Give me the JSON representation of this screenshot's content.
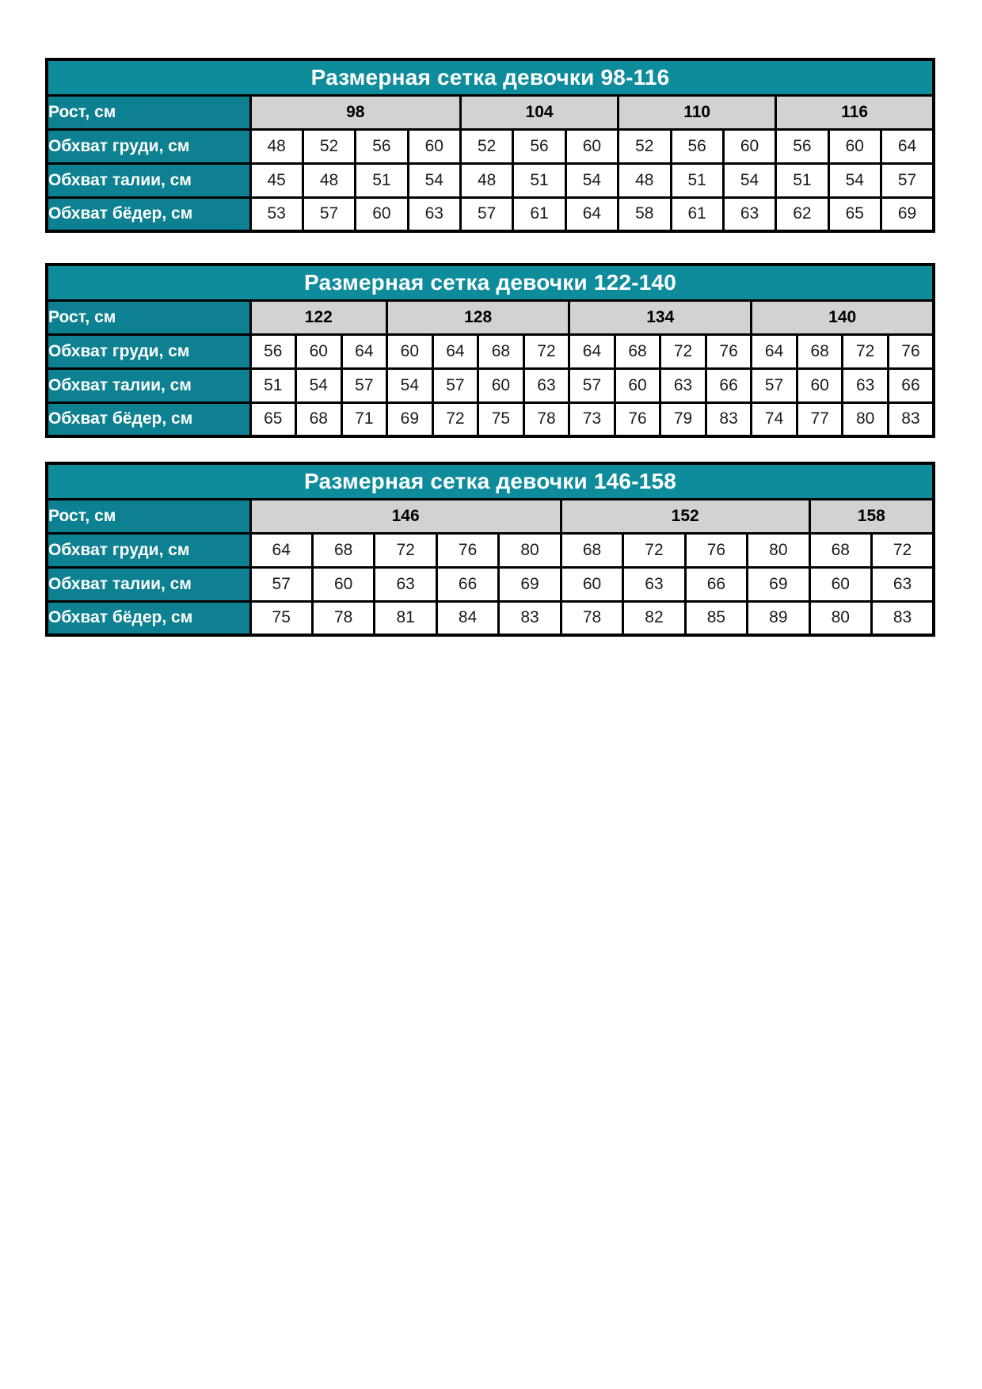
{
  "colors": {
    "title_bg": "#0f8c9c",
    "label_bg": "#0d8191",
    "header_bg": "#d2d2d2",
    "border": "#000000",
    "title_text": "#ffffff",
    "label_text": "#ffffff"
  },
  "row_labels": {
    "height": "Рост, см",
    "chest": "Обхват груди, см",
    "waist": "Обхват талии, см",
    "hips": "Обхват бёдер, см"
  },
  "tables": [
    {
      "title": "Размерная сетка девочки 98-116",
      "height_groups": [
        {
          "label": "98",
          "span": 4
        },
        {
          "label": "104",
          "span": 3
        },
        {
          "label": "110",
          "span": 3
        },
        {
          "label": "116",
          "span": 3
        }
      ],
      "chest": [
        48,
        52,
        56,
        60,
        52,
        56,
        60,
        52,
        56,
        60,
        56,
        60,
        64
      ],
      "waist": [
        45,
        48,
        51,
        54,
        48,
        51,
        54,
        48,
        51,
        54,
        51,
        54,
        57
      ],
      "hips": [
        53,
        57,
        60,
        63,
        57,
        61,
        64,
        58,
        61,
        63,
        62,
        65,
        69
      ]
    },
    {
      "title": "Размерная сетка девочки 122-140",
      "height_groups": [
        {
          "label": "122",
          "span": 3
        },
        {
          "label": "128",
          "span": 4
        },
        {
          "label": "134",
          "span": 4
        },
        {
          "label": "140",
          "span": 4
        }
      ],
      "chest": [
        56,
        60,
        64,
        60,
        64,
        68,
        72,
        64,
        68,
        72,
        76,
        64,
        68,
        72,
        76
      ],
      "waist": [
        51,
        54,
        57,
        54,
        57,
        60,
        63,
        57,
        60,
        63,
        66,
        57,
        60,
        63,
        66
      ],
      "hips": [
        65,
        68,
        71,
        69,
        72,
        75,
        78,
        73,
        76,
        79,
        83,
        74,
        77,
        80,
        83
      ]
    },
    {
      "title": "Размерная сетка девочки 146-158",
      "height_groups": [
        {
          "label": "146",
          "span": 5
        },
        {
          "label": "152",
          "span": 4
        },
        {
          "label": "158",
          "span": 2
        }
      ],
      "chest": [
        64,
        68,
        72,
        76,
        80,
        68,
        72,
        76,
        80,
        68,
        72
      ],
      "waist": [
        57,
        60,
        63,
        66,
        69,
        60,
        63,
        66,
        69,
        60,
        63
      ],
      "hips": [
        75,
        78,
        81,
        84,
        83,
        78,
        82,
        85,
        89,
        80,
        83
      ]
    }
  ]
}
